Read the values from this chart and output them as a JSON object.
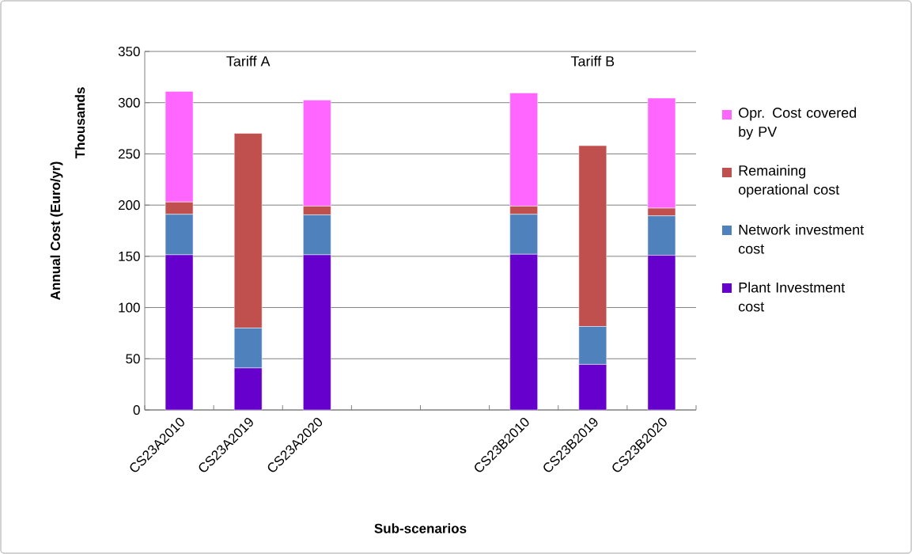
{
  "chart_data": {
    "type": "bar",
    "stacked": true,
    "xlabel": "Sub-scenarios",
    "ylabel": "Annual Cost (Euro/yr)",
    "annotations": [
      "Thousands",
      "Tariff A",
      "Tariff B"
    ],
    "categories": [
      "CS23A2010",
      "CS23A2019",
      "CS23A2020",
      null,
      null,
      "CS23B2010",
      "CS23B2019",
      "CS23B2020"
    ],
    "series": [
      {
        "name": "Plant Investment cost",
        "color": "#6600cc",
        "values": [
          151.5,
          41,
          151.5,
          null,
          null,
          152,
          44.5,
          151
        ]
      },
      {
        "name": "Network investment cost",
        "color": "#4f81bd",
        "values": [
          39.5,
          39,
          39,
          null,
          null,
          39,
          37,
          38.5
        ]
      },
      {
        "name": "Remaining operational cost",
        "color": "#c0504d",
        "values": [
          12,
          190,
          8.5,
          null,
          null,
          8,
          176.5,
          7.5
        ]
      },
      {
        "name": "Opr. Cost covered by PV",
        "color": "#ff66ff",
        "values": [
          108,
          null,
          103.5,
          null,
          null,
          110.5,
          null,
          107.5
        ]
      }
    ],
    "ylim": [
      0,
      350
    ],
    "yticks": [
      0,
      50,
      100,
      150,
      200,
      250,
      300,
      350
    ],
    "grid": "y",
    "legend": "right"
  }
}
